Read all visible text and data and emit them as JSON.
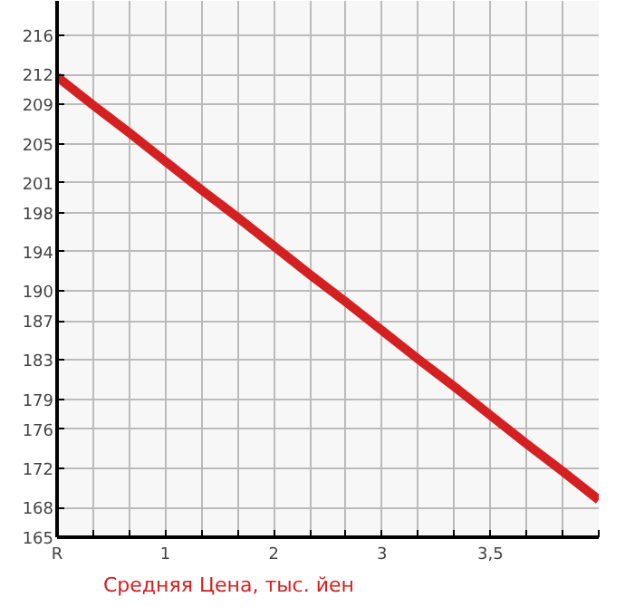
{
  "chart_data": {
    "type": "line",
    "categories": [
      "R",
      null,
      null,
      "1",
      null,
      null,
      "2",
      null,
      null,
      "3",
      null,
      null,
      "3,5",
      null,
      null,
      null
    ],
    "series": [
      {
        "name": "Средняя Цена, тыс. йен",
        "color": "#d42020",
        "values": [
          211.8,
          208.9,
          206.1,
          203.2,
          200.3,
          197.5,
          194.6,
          191.7,
          188.9,
          186.0,
          183.1,
          180.3,
          177.4,
          174.5,
          171.7,
          168.8
        ]
      }
    ],
    "ylim": [
      165,
      219.5
    ],
    "yticks": [
      165,
      168,
      172,
      176,
      179,
      183,
      187,
      190,
      194,
      198,
      201,
      205,
      209,
      212,
      216
    ],
    "grid": true,
    "legend": "bottom left",
    "marker": "none",
    "line_style": "solid"
  }
}
